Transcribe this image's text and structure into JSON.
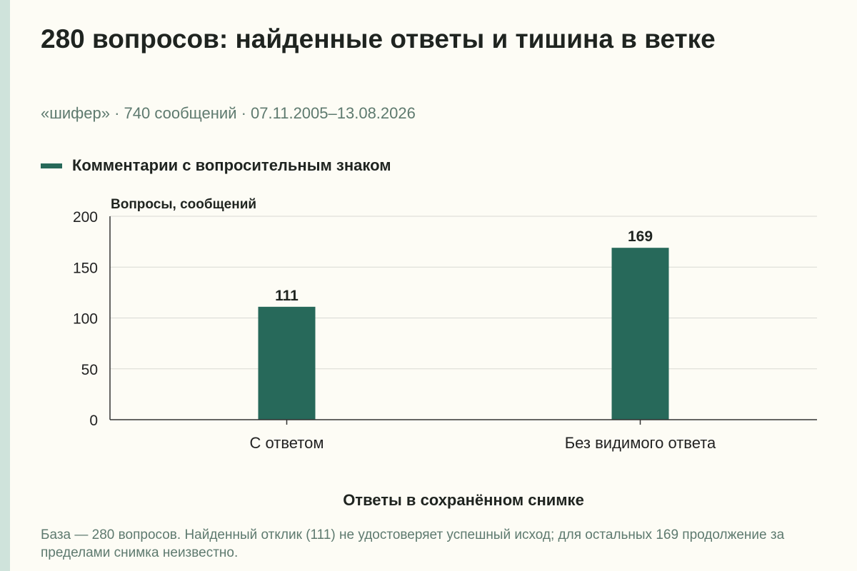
{
  "header": {
    "title": "280 вопросов: найденные ответы и тишина в ветке",
    "subtitle": "«шифер» · 740 сообщений · 07.11.2005–13.08.2026"
  },
  "legend": {
    "label": "Комментарии с вопросительным знаком"
  },
  "colors": {
    "bar": "#27695a",
    "background": "#fdfcf5",
    "stripe": "#cfe3db",
    "muted_text": "#5e7a6f"
  },
  "chart_data": {
    "type": "bar",
    "categories": [
      "С ответом",
      "Без видимого ответа"
    ],
    "series": [
      {
        "name": "Комментарии с вопросительным знаком",
        "values": [
          111,
          169
        ]
      }
    ],
    "data_labels": [
      "111",
      "169"
    ],
    "xlabel": "Ответы в сохранённом снимке",
    "ylabel": "Вопросы, сообщений",
    "ylim": [
      0,
      200
    ],
    "yticks": [
      0,
      50,
      100,
      150,
      200
    ],
    "ytick_labels": [
      "0",
      "50",
      "100",
      "150",
      "200"
    ],
    "grid": true,
    "legend_position": "top-left"
  },
  "footnote": "База — 280 вопросов. Найденный отклик (111) не удостоверяет успешный исход; для остальных 169 продолжение за пределами снимка неизвестно."
}
